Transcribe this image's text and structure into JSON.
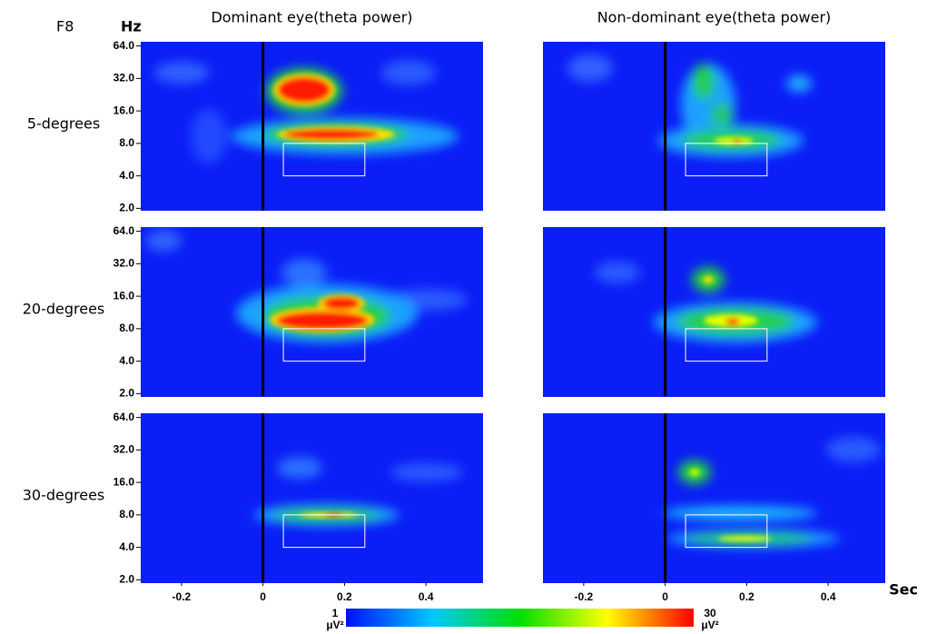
{
  "chart_data": {
    "type": "heatmap",
    "channel": "F8",
    "y_label": "Hz",
    "x_label": "Sec",
    "columns": [
      "Dominant eye(theta power)",
      "Non-dominant eye(theta power)"
    ],
    "rows": [
      "5-degrees",
      "20-degrees",
      "30-degrees"
    ],
    "xlim": [
      -0.3,
      0.54
    ],
    "xticks": [
      -0.2,
      0,
      0.2,
      0.4
    ],
    "log_y": true,
    "ylim": [
      1.9,
      70
    ],
    "yticks": [
      {
        "value": 2,
        "label": "2.0"
      },
      {
        "value": 4,
        "label": "4.0"
      },
      {
        "value": 8,
        "label": "8.0"
      },
      {
        "value": 16,
        "label": "16.0"
      },
      {
        "value": 32,
        "label": "32.0"
      },
      {
        "value": 64,
        "label": "64.0"
      }
    ],
    "onset": 0,
    "window": {
      "x": [
        0.05,
        0.25
      ],
      "y": [
        4,
        8
      ]
    },
    "colorbar": {
      "min": 1,
      "max": 30,
      "unit": "μV²",
      "colors": [
        "#0010ff",
        "#00c8ff",
        "#00e000",
        "#ffff00",
        "#ff0000"
      ]
    }
  }
}
